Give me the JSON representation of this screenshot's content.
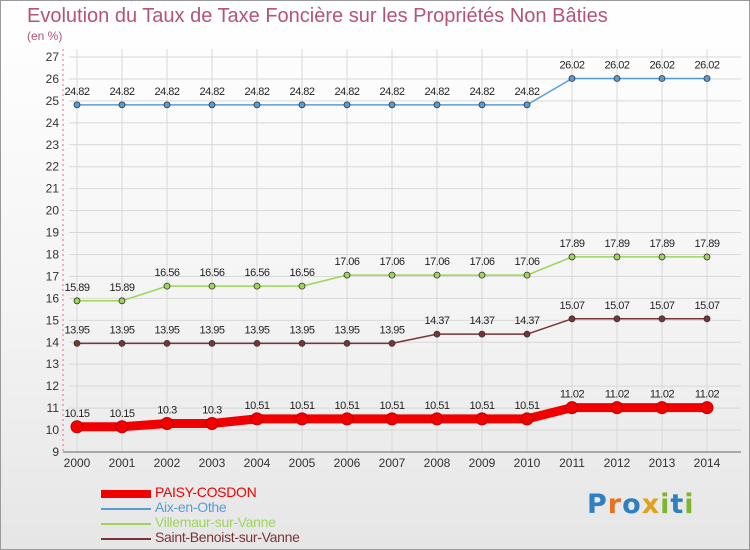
{
  "header": {
    "title": "Evolution du Taux de Taxe Foncière sur les Propriétés Non Bâties",
    "unit": "(en %)"
  },
  "logo": {
    "text": "Proxiti",
    "letters": [
      "P",
      "r",
      "o",
      "x",
      "i",
      "t",
      "i"
    ],
    "colors": [
      "#2f7fc1",
      "#e8731e",
      "#2f7fc1",
      "#e0a21a",
      "#7fb52e",
      "#2f7fc1",
      "#7fb52e"
    ]
  },
  "chart_data": {
    "type": "line",
    "title": "Evolution du Taux de Taxe Foncière sur les Propriétés Non Bâties",
    "ylabel": "(en %)",
    "xlabel": "",
    "ylim": [
      9,
      27
    ],
    "yticks": [
      9,
      10,
      11,
      12,
      13,
      14,
      15,
      16,
      17,
      18,
      19,
      20,
      21,
      22,
      23,
      24,
      25,
      26,
      27
    ],
    "grid": true,
    "legend_position": "bottom-left",
    "categories": [
      "2000",
      "2001",
      "2002",
      "2003",
      "2004",
      "2005",
      "2006",
      "2007",
      "2008",
      "2009",
      "2010",
      "2011",
      "2012",
      "2013",
      "2014"
    ],
    "series": [
      {
        "name": "PAISY-COSDON",
        "color": "#f00000",
        "thick": true,
        "values": [
          10.15,
          10.15,
          10.3,
          10.3,
          10.51,
          10.51,
          10.51,
          10.51,
          10.51,
          10.51,
          10.51,
          11.02,
          11.02,
          11.02,
          11.02
        ],
        "labels": [
          "10.15",
          "10.15",
          "10.3",
          "10.3",
          "10.51",
          "10.51",
          "10.51",
          "10.51",
          "10.51",
          "10.51",
          "10.51",
          "11.02",
          "11.02",
          "11.02",
          "11.02"
        ]
      },
      {
        "name": "Aix-en-Othe",
        "color": "#5a9bd4",
        "thick": false,
        "values": [
          24.82,
          24.82,
          24.82,
          24.82,
          24.82,
          24.82,
          24.82,
          24.82,
          24.82,
          24.82,
          24.82,
          26.02,
          26.02,
          26.02,
          26.02
        ],
        "labels": [
          "24.82",
          "24.82",
          "24.82",
          "24.82",
          "24.82",
          "24.82",
          "24.82",
          "24.82",
          "24.82",
          "24.82",
          "24.82",
          "26.02",
          "26.02",
          "26.02",
          "26.02"
        ]
      },
      {
        "name": "Villemaur-sur-Vanne",
        "color": "#9ed55a",
        "thick": false,
        "values": [
          15.89,
          15.89,
          16.56,
          16.56,
          16.56,
          16.56,
          17.06,
          17.06,
          17.06,
          17.06,
          17.06,
          17.89,
          17.89,
          17.89,
          17.89
        ],
        "labels": [
          "15.89",
          "15.89",
          "16.56",
          "16.56",
          "16.56",
          "16.56",
          "17.06",
          "17.06",
          "17.06",
          "17.06",
          "17.06",
          "17.89",
          "17.89",
          "17.89",
          "17.89"
        ]
      },
      {
        "name": "Saint-Benoist-sur-Vanne",
        "color": "#7a3438",
        "thick": false,
        "values": [
          13.95,
          13.95,
          13.95,
          13.95,
          13.95,
          13.95,
          13.95,
          13.95,
          14.37,
          14.37,
          14.37,
          15.07,
          15.07,
          15.07,
          15.07
        ],
        "labels": [
          "13.95",
          "13.95",
          "13.95",
          "13.95",
          "13.95",
          "13.95",
          "13.95",
          "13.95",
          "14.37",
          "14.37",
          "14.37",
          "15.07",
          "15.07",
          "15.07",
          "15.07"
        ]
      }
    ]
  }
}
